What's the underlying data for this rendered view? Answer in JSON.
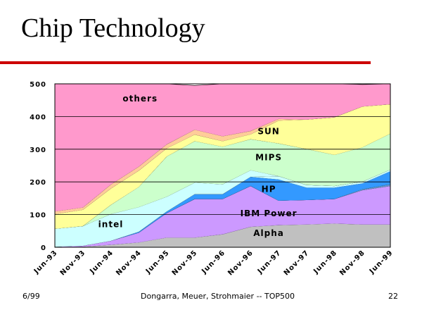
{
  "slide": {
    "title": "Chip Technology",
    "footer_left": "6/99",
    "footer_center": "Dongarra, Meuer, Strohmaier -- TOP500",
    "footer_right": "22"
  },
  "colors": {
    "plot_border": "#000000",
    "gridline": "#000000",
    "title_rule": "#cc0000"
  },
  "chart_data": {
    "type": "area",
    "stacked": true,
    "categories": [
      "Jun-93",
      "Nov-93",
      "Jun-94",
      "Nov-94",
      "Jun-95",
      "Nov-95",
      "Jun-96",
      "Nov-96",
      "Jun-97",
      "Nov-97",
      "Jun-98",
      "Nov-98",
      "Jun-99"
    ],
    "ylim": [
      0,
      500
    ],
    "yticks": [
      0,
      100,
      200,
      300,
      400,
      500
    ],
    "grid": true,
    "series": [
      {
        "name": "Alpha",
        "color": "#c0c0c0",
        "values": [
          0,
          2,
          8,
          15,
          30,
          30,
          40,
          63,
          68,
          70,
          73,
          70,
          70
        ]
      },
      {
        "name": "IBM Power",
        "color": "#cc99ff",
        "values": [
          2,
          3,
          12,
          30,
          75,
          118,
          108,
          125,
          75,
          75,
          75,
          105,
          118
        ]
      },
      {
        "name": "",
        "color": "#6699cc",
        "values": [
          0,
          0,
          0,
          0,
          0,
          0,
          0,
          0,
          0,
          0,
          0,
          3,
          5
        ]
      },
      {
        "name": "HP",
        "color": "#3399ff",
        "values": [
          0,
          0,
          0,
          3,
          5,
          15,
          15,
          28,
          65,
          38,
          35,
          18,
          40
        ]
      },
      {
        "name": "",
        "color": "#ccffff",
        "values": [
          0,
          0,
          0,
          0,
          0,
          0,
          0,
          0,
          10,
          8,
          5,
          5,
          5
        ]
      },
      {
        "name": "intel",
        "color": "#ccffff",
        "values": [
          55,
          60,
          82,
          75,
          45,
          35,
          30,
          20,
          0,
          0,
          0,
          0,
          0
        ]
      },
      {
        "name": "MIPS",
        "color": "#ccffcc",
        "values": [
          0,
          0,
          28,
          62,
          123,
          127,
          115,
          95,
          100,
          110,
          95,
          105,
          110
        ]
      },
      {
        "name": "SUN",
        "color": "#ffff99",
        "values": [
          45,
          50,
          50,
          50,
          25,
          20,
          17,
          15,
          70,
          90,
          115,
          125,
          90
        ]
      },
      {
        "name": "",
        "color": "#ffcc99",
        "values": [
          8,
          7,
          12,
          12,
          12,
          15,
          15,
          10,
          5,
          0,
          0,
          0,
          0
        ]
      },
      {
        "name": "others",
        "color": "#ff99cc",
        "values": [
          390,
          378,
          308,
          253,
          185,
          135,
          160,
          144,
          107,
          109,
          102,
          67,
          62
        ]
      }
    ],
    "series_labels": [
      {
        "text": "others",
        "x": 3.05,
        "y": 455
      },
      {
        "text": "SUN",
        "x": 7.65,
        "y": 355
      },
      {
        "text": "MIPS",
        "x": 7.65,
        "y": 275
      },
      {
        "text": "HP",
        "x": 7.65,
        "y": 178
      },
      {
        "text": "IBM Power",
        "x": 7.65,
        "y": 103
      },
      {
        "text": "Alpha",
        "x": 7.65,
        "y": 43
      },
      {
        "text": "intel",
        "x": 2.0,
        "y": 70
      }
    ]
  }
}
